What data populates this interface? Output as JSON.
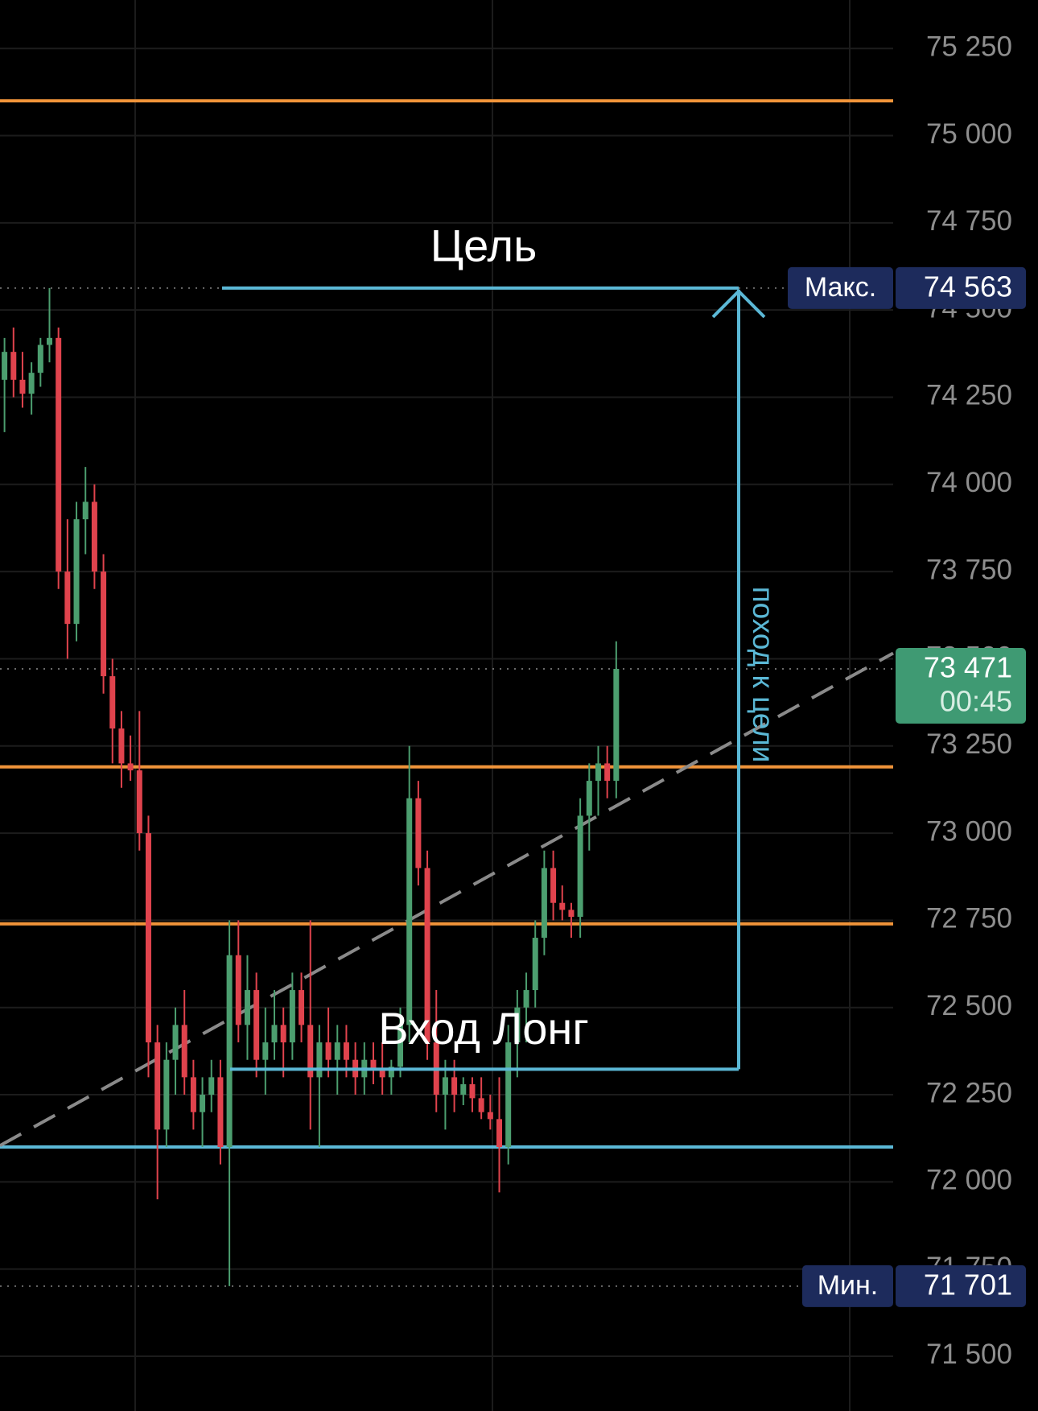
{
  "chart_data": {
    "type": "candlestick",
    "series": {
      "up_color": "#4c9e6f",
      "down_color": "#e0434d",
      "open": [
        74300,
        74380,
        74300,
        74260,
        74320,
        74400,
        74420,
        73750,
        73600,
        73900,
        73950,
        73750,
        73450,
        73300,
        73200,
        73180,
        73000,
        72400,
        72150,
        72350,
        72450,
        72300,
        72200,
        72250,
        72300,
        72100,
        72650,
        72450,
        72550,
        72350,
        72400,
        72450,
        72400,
        72550,
        72450,
        72300,
        72400,
        72350,
        72400,
        72350,
        72300,
        72350,
        72320,
        72300,
        72330,
        72450,
        73100,
        72900,
        72400,
        72250,
        72300,
        72250,
        72280,
        72240,
        72200,
        72180,
        72100,
        72400,
        72500,
        72550,
        72700,
        72900,
        72800,
        72780,
        72760,
        73050,
        73150,
        73200,
        73150
      ],
      "high": [
        74420,
        74450,
        74380,
        74350,
        74420,
        74563,
        74450,
        73900,
        73950,
        74050,
        74000,
        73800,
        73500,
        73350,
        73280,
        73350,
        73050,
        72450,
        72400,
        72500,
        72550,
        72350,
        72300,
        72350,
        72350,
        72750,
        72750,
        72650,
        72600,
        72500,
        72550,
        72500,
        72600,
        72600,
        72750,
        72450,
        72500,
        72450,
        72450,
        72400,
        72400,
        72400,
        72400,
        72350,
        72500,
        73250,
        73150,
        72950,
        72550,
        72350,
        72350,
        72300,
        72300,
        72300,
        72250,
        72300,
        72450,
        72550,
        72600,
        72750,
        72950,
        72950,
        72850,
        72800,
        73100,
        73200,
        73250,
        73250,
        73550
      ],
      "low": [
        74150,
        74250,
        74220,
        74200,
        74280,
        74350,
        73700,
        73500,
        73550,
        73800,
        73700,
        73400,
        73200,
        73130,
        73150,
        72950,
        72300,
        71950,
        72100,
        72250,
        72250,
        72150,
        72100,
        72200,
        72050,
        71701,
        72400,
        72350,
        72300,
        72250,
        72350,
        72300,
        72350,
        72400,
        72150,
        72100,
        72300,
        72250,
        72300,
        72250,
        72250,
        72280,
        72250,
        72250,
        72300,
        72400,
        72850,
        72350,
        72200,
        72150,
        72200,
        72220,
        72200,
        72180,
        72150,
        71970,
        72050,
        72300,
        72400,
        72500,
        72650,
        72750,
        72750,
        72700,
        72700,
        72950,
        73050,
        73100,
        73100
      ],
      "close": [
        74380,
        74300,
        74260,
        74320,
        74400,
        74420,
        73750,
        73600,
        73900,
        73950,
        73750,
        73450,
        73300,
        73200,
        73180,
        73000,
        72400,
        72150,
        72350,
        72450,
        72300,
        72200,
        72250,
        72300,
        72100,
        72650,
        72450,
        72550,
        72350,
        72400,
        72450,
        72400,
        72550,
        72450,
        72300,
        72400,
        72350,
        72400,
        72350,
        72300,
        72350,
        72320,
        72300,
        72330,
        72450,
        73100,
        72900,
        72400,
        72250,
        72300,
        72250,
        72280,
        72240,
        72200,
        72180,
        72100,
        72400,
        72500,
        72550,
        72700,
        72900,
        72800,
        72780,
        72760,
        73050,
        73150,
        73200,
        73150,
        73471
      ]
    },
    "ylim": [
      71343,
      75389
    ],
    "yticks": [
      {
        "value": 71500,
        "label": "71 500"
      },
      {
        "value": 71750,
        "label": "71 750"
      },
      {
        "value": 72000,
        "label": "72 000"
      },
      {
        "value": 72250,
        "label": "72 250"
      },
      {
        "value": 72500,
        "label": "72 500"
      },
      {
        "value": 72750,
        "label": "72 750"
      },
      {
        "value": 73000,
        "label": "73 000"
      },
      {
        "value": 73250,
        "label": "73 250"
      },
      {
        "value": 73500,
        "label": "73 500"
      },
      {
        "value": 73750,
        "label": "73 750"
      },
      {
        "value": 74000,
        "label": "74 000"
      },
      {
        "value": 74250,
        "label": "74 250"
      },
      {
        "value": 74500,
        "label": "74 500"
      },
      {
        "value": 74750,
        "label": "74 750"
      },
      {
        "value": 75000,
        "label": "75 000"
      },
      {
        "value": 75250,
        "label": "75 250"
      }
    ],
    "grid": true,
    "horizontal_lines": [
      {
        "value": 75100,
        "color": "#f0943a"
      },
      {
        "value": 73190,
        "color": "#f0943a"
      },
      {
        "value": 72740,
        "color": "#f0943a"
      },
      {
        "value": 72100,
        "color": "#5bb8d6"
      }
    ],
    "trendline": {
      "start": 72104,
      "end": 73516,
      "color": "#8a8a8a"
    },
    "max_marker": {
      "label": "Макс.",
      "value": 74563,
      "value_label": "74 563"
    },
    "min_marker": {
      "label": "Мин.",
      "value": 71701,
      "value_label": "71 701"
    },
    "last_price": {
      "value": 73471,
      "value_label": "73 471",
      "timer": "00:45"
    },
    "annotations": {
      "target": "Цель",
      "entry": {
        "text": "Вход Лонг",
        "value": 72323
      },
      "arrow_text": "поход к цели",
      "color": "#5bb8d6"
    }
  }
}
